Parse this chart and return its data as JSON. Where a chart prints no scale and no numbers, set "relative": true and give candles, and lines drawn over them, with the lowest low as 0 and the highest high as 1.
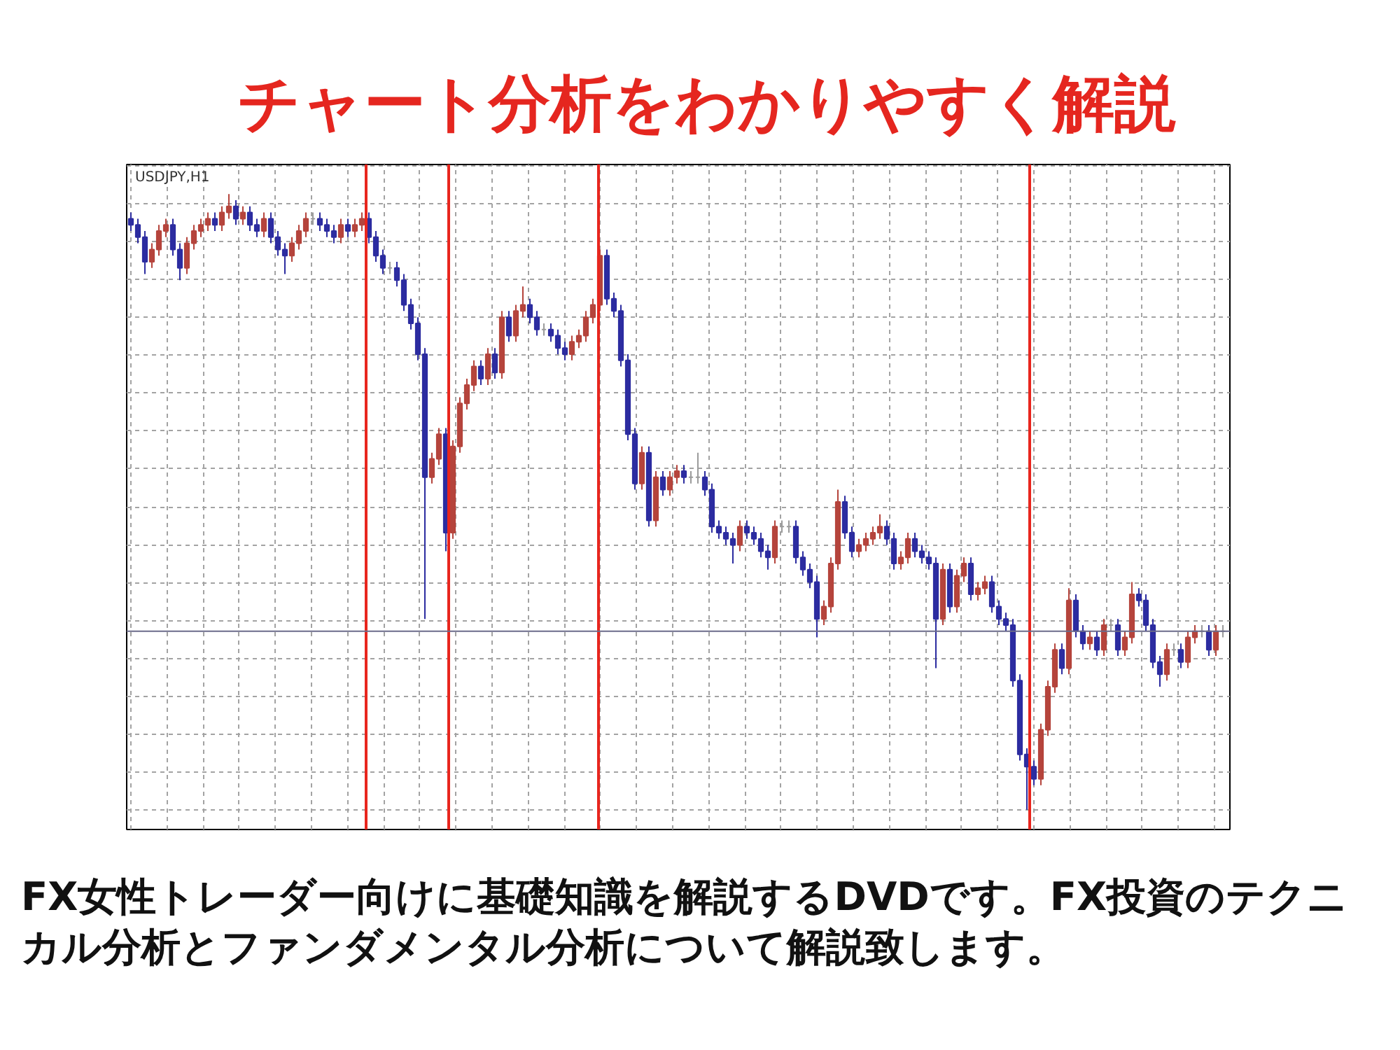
{
  "chart_data": {
    "type": "candlestick",
    "title": "チャート分析をわかりやすく解説",
    "annotations": [
      "USDJPY,H1",
      "FX女性トレーダー向けに基礎知識を解説するDVDです。FX投資のテクニカル分析とファンダメンタル分析について解説致します。"
    ],
    "relative": true,
    "grid": true,
    "categories": [
      null,
      null,
      null,
      null,
      null,
      null,
      null,
      null,
      null,
      null,
      null,
      null,
      null,
      null,
      null,
      null,
      null,
      null,
      null,
      null,
      null,
      null,
      null,
      null,
      null,
      null,
      null,
      null,
      null,
      null,
      null,
      null,
      null,
      null,
      null,
      null,
      null,
      null,
      null,
      null,
      null,
      null,
      null,
      null,
      null,
      null,
      null,
      null,
      null,
      null,
      null,
      null,
      null,
      null,
      null,
      null,
      null,
      null,
      null,
      null,
      null,
      null,
      null,
      null,
      null,
      null,
      null,
      null,
      null,
      null,
      null,
      null,
      null,
      null,
      null,
      null,
      null,
      null,
      null,
      null,
      null,
      null,
      null,
      null,
      null,
      null,
      null,
      null,
      null,
      null,
      null,
      null,
      null,
      null,
      null,
      null,
      null,
      null,
      null,
      null,
      null,
      null,
      null,
      null,
      null,
      null,
      null,
      null,
      null,
      null,
      null,
      null,
      null,
      null,
      null,
      null,
      null,
      null,
      null,
      null,
      null,
      null,
      null,
      null,
      null,
      null,
      null,
      null,
      null,
      null,
      null,
      null,
      null,
      null,
      null,
      null,
      null,
      null,
      null,
      null,
      null,
      null,
      null,
      null,
      null,
      null,
      null,
      null,
      null,
      null,
      null,
      null,
      null,
      null,
      null,
      null,
      null
    ],
    "ohlc": [
      [
        0.96,
        0.97,
        0.94,
        0.95
      ],
      [
        0.95,
        0.96,
        0.92,
        0.93
      ],
      [
        0.93,
        0.94,
        0.87,
        0.89
      ],
      [
        0.89,
        0.92,
        0.88,
        0.91
      ],
      [
        0.91,
        0.95,
        0.9,
        0.94
      ],
      [
        0.94,
        0.96,
        0.93,
        0.95
      ],
      [
        0.95,
        0.96,
        0.9,
        0.91
      ],
      [
        0.91,
        0.92,
        0.86,
        0.88
      ],
      [
        0.88,
        0.93,
        0.87,
        0.92
      ],
      [
        0.92,
        0.95,
        0.91,
        0.94
      ],
      [
        0.94,
        0.96,
        0.93,
        0.95
      ],
      [
        0.95,
        0.97,
        0.94,
        0.96
      ],
      [
        0.96,
        0.97,
        0.94,
        0.95
      ],
      [
        0.95,
        0.98,
        0.94,
        0.97
      ],
      [
        0.97,
        1.0,
        0.96,
        0.98
      ],
      [
        0.98,
        0.99,
        0.95,
        0.96
      ],
      [
        0.96,
        0.98,
        0.95,
        0.97
      ],
      [
        0.97,
        0.98,
        0.94,
        0.95
      ],
      [
        0.95,
        0.96,
        0.93,
        0.94
      ],
      [
        0.94,
        0.97,
        0.93,
        0.96
      ],
      [
        0.96,
        0.97,
        0.92,
        0.93
      ],
      [
        0.93,
        0.94,
        0.9,
        0.91
      ],
      [
        0.91,
        0.92,
        0.87,
        0.9
      ],
      [
        0.9,
        0.93,
        0.89,
        0.92
      ],
      [
        0.92,
        0.95,
        0.91,
        0.94
      ],
      [
        0.94,
        0.97,
        0.93,
        0.96
      ],
      [
        0.96,
        0.97,
        0.95,
        0.96
      ],
      [
        0.96,
        0.97,
        0.94,
        0.95
      ],
      [
        0.95,
        0.96,
        0.93,
        0.94
      ],
      [
        0.94,
        0.95,
        0.92,
        0.93
      ],
      [
        0.93,
        0.96,
        0.92,
        0.95
      ],
      [
        0.95,
        0.96,
        0.93,
        0.94
      ],
      [
        0.94,
        0.96,
        0.93,
        0.95
      ],
      [
        0.95,
        0.97,
        0.94,
        0.96
      ],
      [
        0.96,
        0.97,
        0.92,
        0.93
      ],
      [
        0.93,
        0.94,
        0.89,
        0.9
      ],
      [
        0.9,
        0.91,
        0.87,
        0.88
      ],
      [
        0.88,
        0.89,
        0.87,
        0.88
      ],
      [
        0.88,
        0.89,
        0.85,
        0.86
      ],
      [
        0.86,
        0.87,
        0.81,
        0.82
      ],
      [
        0.82,
        0.83,
        0.78,
        0.79
      ],
      [
        0.79,
        0.8,
        0.73,
        0.74
      ],
      [
        0.74,
        0.75,
        0.31,
        0.54
      ],
      [
        0.54,
        0.58,
        0.53,
        0.57
      ],
      [
        0.57,
        0.62,
        0.56,
        0.61
      ],
      [
        0.61,
        0.62,
        0.42,
        0.45
      ],
      [
        0.45,
        0.6,
        0.44,
        0.59
      ],
      [
        0.59,
        0.67,
        0.58,
        0.66
      ],
      [
        0.66,
        0.7,
        0.65,
        0.69
      ],
      [
        0.69,
        0.73,
        0.68,
        0.72
      ],
      [
        0.72,
        0.73,
        0.69,
        0.7
      ],
      [
        0.7,
        0.75,
        0.69,
        0.74
      ],
      [
        0.74,
        0.75,
        0.7,
        0.71
      ],
      [
        0.71,
        0.81,
        0.7,
        0.8
      ],
      [
        0.8,
        0.81,
        0.76,
        0.77
      ],
      [
        0.77,
        0.82,
        0.76,
        0.81
      ],
      [
        0.81,
        0.85,
        0.8,
        0.82
      ],
      [
        0.82,
        0.83,
        0.79,
        0.8
      ],
      [
        0.8,
        0.81,
        0.77,
        0.78
      ],
      [
        0.78,
        0.79,
        0.77,
        0.78
      ],
      [
        0.78,
        0.79,
        0.76,
        0.77
      ],
      [
        0.77,
        0.78,
        0.74,
        0.75
      ],
      [
        0.75,
        0.76,
        0.73,
        0.74
      ],
      [
        0.74,
        0.77,
        0.73,
        0.76
      ],
      [
        0.76,
        0.78,
        0.75,
        0.77
      ],
      [
        0.77,
        0.81,
        0.76,
        0.8
      ],
      [
        0.8,
        0.83,
        0.79,
        0.82
      ],
      [
        0.82,
        0.91,
        0.81,
        0.9
      ],
      [
        0.9,
        0.91,
        0.82,
        0.83
      ],
      [
        0.83,
        0.84,
        0.8,
        0.81
      ],
      [
        0.81,
        0.82,
        0.72,
        0.73
      ],
      [
        0.73,
        0.74,
        0.6,
        0.61
      ],
      [
        0.61,
        0.62,
        0.52,
        0.53
      ],
      [
        0.53,
        0.59,
        0.52,
        0.58
      ],
      [
        0.58,
        0.59,
        0.46,
        0.47
      ],
      [
        0.47,
        0.55,
        0.46,
        0.54
      ],
      [
        0.54,
        0.55,
        0.51,
        0.52
      ],
      [
        0.52,
        0.55,
        0.51,
        0.54
      ],
      [
        0.54,
        0.56,
        0.53,
        0.55
      ],
      [
        0.55,
        0.56,
        0.53,
        0.54
      ],
      [
        0.54,
        0.55,
        0.53,
        0.54
      ],
      [
        0.54,
        0.58,
        0.53,
        0.54
      ],
      [
        0.54,
        0.55,
        0.51,
        0.52
      ],
      [
        0.52,
        0.53,
        0.45,
        0.46
      ],
      [
        0.46,
        0.47,
        0.44,
        0.45
      ],
      [
        0.45,
        0.46,
        0.43,
        0.44
      ],
      [
        0.44,
        0.45,
        0.4,
        0.43
      ],
      [
        0.43,
        0.47,
        0.42,
        0.46
      ],
      [
        0.46,
        0.47,
        0.44,
        0.45
      ],
      [
        0.45,
        0.46,
        0.43,
        0.44
      ],
      [
        0.44,
        0.45,
        0.41,
        0.42
      ],
      [
        0.42,
        0.43,
        0.39,
        0.41
      ],
      [
        0.41,
        0.47,
        0.4,
        0.46
      ],
      [
        0.46,
        0.47,
        0.45,
        0.46
      ],
      [
        0.46,
        0.47,
        0.45,
        0.46
      ],
      [
        0.46,
        0.47,
        0.4,
        0.41
      ],
      [
        0.41,
        0.42,
        0.38,
        0.39
      ],
      [
        0.39,
        0.4,
        0.36,
        0.37
      ],
      [
        0.37,
        0.38,
        0.28,
        0.31
      ],
      [
        0.31,
        0.34,
        0.3,
        0.33
      ],
      [
        0.33,
        0.41,
        0.32,
        0.4
      ],
      [
        0.4,
        0.52,
        0.39,
        0.5
      ],
      [
        0.5,
        0.51,
        0.44,
        0.45
      ],
      [
        0.45,
        0.46,
        0.41,
        0.42
      ],
      [
        0.42,
        0.44,
        0.41,
        0.43
      ],
      [
        0.43,
        0.45,
        0.42,
        0.44
      ],
      [
        0.44,
        0.46,
        0.43,
        0.45
      ],
      [
        0.45,
        0.48,
        0.44,
        0.46
      ],
      [
        0.46,
        0.47,
        0.43,
        0.44
      ],
      [
        0.44,
        0.45,
        0.39,
        0.4
      ],
      [
        0.4,
        0.42,
        0.39,
        0.41
      ],
      [
        0.41,
        0.45,
        0.4,
        0.44
      ],
      [
        0.44,
        0.45,
        0.41,
        0.42
      ],
      [
        0.42,
        0.43,
        0.4,
        0.41
      ],
      [
        0.41,
        0.42,
        0.39,
        0.4
      ],
      [
        0.4,
        0.41,
        0.23,
        0.31
      ],
      [
        0.31,
        0.4,
        0.3,
        0.39
      ],
      [
        0.39,
        0.4,
        0.32,
        0.33
      ],
      [
        0.33,
        0.39,
        0.32,
        0.38
      ],
      [
        0.38,
        0.41,
        0.37,
        0.4
      ],
      [
        0.4,
        0.41,
        0.34,
        0.35
      ],
      [
        0.35,
        0.37,
        0.34,
        0.36
      ],
      [
        0.36,
        0.38,
        0.35,
        0.37
      ],
      [
        0.37,
        0.38,
        0.32,
        0.33
      ],
      [
        0.33,
        0.34,
        0.3,
        0.31
      ],
      [
        0.31,
        0.32,
        0.29,
        0.3
      ],
      [
        0.3,
        0.31,
        0.2,
        0.21
      ],
      [
        0.21,
        0.22,
        0.08,
        0.09
      ],
      [
        0.09,
        0.1,
        0.0,
        0.07
      ],
      [
        0.07,
        0.08,
        0.04,
        0.05
      ],
      [
        0.05,
        0.14,
        0.04,
        0.13
      ],
      [
        0.13,
        0.21,
        0.12,
        0.2
      ],
      [
        0.2,
        0.27,
        0.19,
        0.26
      ],
      [
        0.26,
        0.27,
        0.22,
        0.23
      ],
      [
        0.23,
        0.36,
        0.22,
        0.34
      ],
      [
        0.34,
        0.35,
        0.28,
        0.29
      ],
      [
        0.29,
        0.3,
        0.26,
        0.27
      ],
      [
        0.27,
        0.29,
        0.26,
        0.28
      ],
      [
        0.28,
        0.29,
        0.25,
        0.26
      ],
      [
        0.26,
        0.31,
        0.25,
        0.3
      ],
      [
        0.3,
        0.31,
        0.29,
        0.3
      ],
      [
        0.3,
        0.31,
        0.25,
        0.26
      ],
      [
        0.26,
        0.29,
        0.25,
        0.28
      ],
      [
        0.28,
        0.37,
        0.27,
        0.35
      ],
      [
        0.35,
        0.36,
        0.33,
        0.34
      ],
      [
        0.34,
        0.35,
        0.29,
        0.3
      ],
      [
        0.3,
        0.31,
        0.23,
        0.24
      ],
      [
        0.24,
        0.25,
        0.2,
        0.22
      ],
      [
        0.22,
        0.27,
        0.21,
        0.26
      ],
      [
        0.26,
        0.27,
        0.25,
        0.26
      ],
      [
        0.26,
        0.27,
        0.23,
        0.24
      ],
      [
        0.24,
        0.29,
        0.23,
        0.28
      ],
      [
        0.28,
        0.3,
        0.27,
        0.29
      ],
      [
        0.29,
        0.3,
        0.28,
        0.29
      ],
      [
        0.29,
        0.3,
        0.25,
        0.26
      ],
      [
        0.26,
        0.3,
        0.25,
        0.29
      ],
      [
        0.29,
        0.3,
        0.28,
        0.29
      ]
    ],
    "colors": [
      "#2c2ca0",
      "#2c2ca0",
      "#2c2ca0",
      "#b5443c",
      "#b5443c",
      "#b5443c",
      "#2c2ca0",
      "#2c2ca0",
      "#b5443c",
      "#b5443c",
      "#b5443c",
      "#b5443c",
      "#2c2ca0",
      "#b5443c",
      "#b5443c",
      "#2c2ca0",
      "#b5443c",
      "#2c2ca0",
      "#2c2ca0",
      "#b5443c",
      "#2c2ca0",
      "#2c2ca0",
      "#2c2ca0",
      "#b5443c",
      "#b5443c",
      "#b5443c",
      "#9b9b9b",
      "#2c2ca0",
      "#2c2ca0",
      "#2c2ca0",
      "#b5443c",
      "#2c2ca0",
      "#b5443c",
      "#b5443c",
      "#2c2ca0",
      "#2c2ca0",
      "#2c2ca0",
      "#9b9b9b",
      "#2c2ca0",
      "#2c2ca0",
      "#2c2ca0",
      "#2c2ca0",
      "#2c2ca0",
      "#b5443c",
      "#b5443c",
      "#2c2ca0",
      "#b5443c",
      "#b5443c",
      "#b5443c",
      "#b5443c",
      "#2c2ca0",
      "#b5443c",
      "#2c2ca0",
      "#b5443c",
      "#2c2ca0",
      "#b5443c",
      "#b5443c",
      "#2c2ca0",
      "#2c2ca0",
      "#9b9b9b",
      "#2c2ca0",
      "#2c2ca0",
      "#2c2ca0",
      "#b5443c",
      "#b5443c",
      "#b5443c",
      "#b5443c",
      "#b5443c",
      "#2c2ca0",
      "#2c2ca0",
      "#2c2ca0",
      "#2c2ca0",
      "#2c2ca0",
      "#b5443c",
      "#2c2ca0",
      "#b5443c",
      "#2c2ca0",
      "#b5443c",
      "#b5443c",
      "#2c2ca0",
      "#9b9b9b",
      "#9b9b9b",
      "#2c2ca0",
      "#2c2ca0",
      "#2c2ca0",
      "#2c2ca0",
      "#2c2ca0",
      "#b5443c",
      "#2c2ca0",
      "#2c2ca0",
      "#2c2ca0",
      "#2c2ca0",
      "#b5443c",
      "#9b9b9b",
      "#9b9b9b",
      "#2c2ca0",
      "#2c2ca0",
      "#2c2ca0",
      "#2c2ca0",
      "#b5443c",
      "#b5443c",
      "#b5443c",
      "#2c2ca0",
      "#2c2ca0",
      "#b5443c",
      "#b5443c",
      "#b5443c",
      "#b5443c",
      "#2c2ca0",
      "#2c2ca0",
      "#b5443c",
      "#b5443c",
      "#2c2ca0",
      "#2c2ca0",
      "#2c2ca0",
      "#2c2ca0",
      "#b5443c",
      "#2c2ca0",
      "#b5443c",
      "#b5443c",
      "#2c2ca0",
      "#b5443c",
      "#b5443c",
      "#2c2ca0",
      "#2c2ca0",
      "#2c2ca0",
      "#2c2ca0",
      "#2c2ca0",
      "#2c2ca0",
      "#2c2ca0",
      "#b5443c",
      "#b5443c",
      "#b5443c",
      "#2c2ca0",
      "#b5443c",
      "#2c2ca0",
      "#2c2ca0",
      "#b5443c",
      "#2c2ca0",
      "#b5443c",
      "#9b9b9b",
      "#2c2ca0",
      "#b5443c",
      "#b5443c",
      "#2c2ca0",
      "#2c2ca0",
      "#2c2ca0",
      "#2c2ca0",
      "#b5443c",
      "#9b9b9b",
      "#2c2ca0",
      "#b5443c",
      "#b5443c",
      "#9b9b9b",
      "#2c2ca0",
      "#b5443c",
      "#9b9b9b"
    ],
    "ref_lines": [
      {
        "axis": "y",
        "value": 0.29,
        "color": "#6b6b8a"
      }
    ]
  }
}
